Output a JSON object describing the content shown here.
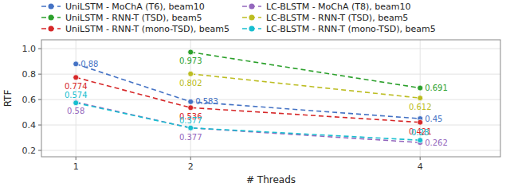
{
  "chart_data": {
    "type": "line",
    "x": [
      1,
      2,
      4
    ],
    "series": [
      {
        "name": "UniLSTM - MoChA (T6), beam10",
        "color": "#4472C4",
        "line_style": "dashed",
        "marker": "circle",
        "values": [
          0.88,
          0.583,
          0.45
        ]
      },
      {
        "name": "LC-BLSTM - MoChA (T8), beam10",
        "color": "#9467BD",
        "line_style": "dashed",
        "marker": "circle",
        "values": [
          0.58,
          0.377,
          0.262
        ]
      },
      {
        "name": "UniLSTM - RNN-T (TSD), beam5",
        "color": "#2CA02C",
        "line_style": "dashed",
        "marker": "circle",
        "values": [
          null,
          0.973,
          0.691
        ]
      },
      {
        "name": "LC-BLSTM - RNN-T (TSD), beam5",
        "color": "#BCBD22",
        "line_style": "dashed",
        "marker": "circle",
        "values": [
          null,
          0.802,
          0.612
        ]
      },
      {
        "name": "UniLSTM - RNN-T (mono-TSD), beam5",
        "color": "#D62728",
        "line_style": "dashed",
        "marker": "circle",
        "values": [
          0.774,
          0.536,
          0.421
        ]
      },
      {
        "name": "LC-BLSTM - RNN-T (mono-TSD), beam5",
        "color": "#17BECF",
        "line_style": "dashed",
        "marker": "circle",
        "values": [
          0.574,
          0.377,
          0.28
        ]
      }
    ],
    "xlabel": "# Threads",
    "ylabel": "RTF",
    "xlim": [
      0.7,
      4.7
    ],
    "xticks": [
      1,
      2,
      4
    ],
    "ylim": [
      0.15,
      1.07
    ],
    "yticks": [
      0.2,
      0.4,
      0.6,
      0.8,
      {
        "value": 1,
        "label": "1.0"
      }
    ],
    "grid": true,
    "legend": "top",
    "data_labels": true
  }
}
